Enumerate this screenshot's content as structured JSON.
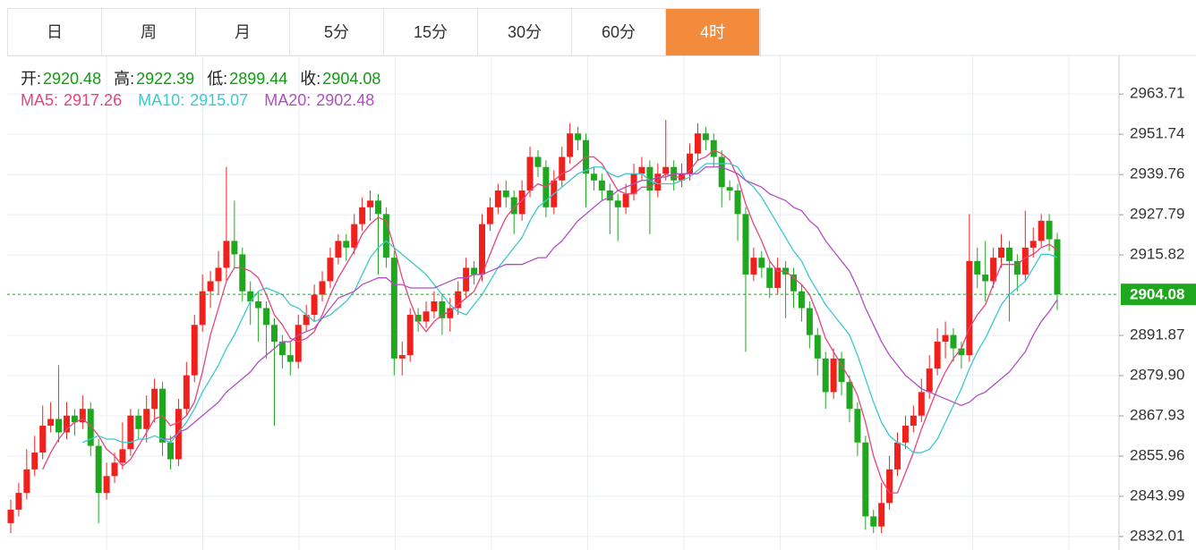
{
  "tabs": [
    "日",
    "周",
    "月",
    "5分",
    "15分",
    "30分",
    "60分",
    "4时"
  ],
  "active_tab": 7,
  "chart_data": {
    "type": "candlestick",
    "ohlc_header": [
      {
        "label": "开:",
        "value": 2920.48
      },
      {
        "label": "高:",
        "value": 2922.39
      },
      {
        "label": "低:",
        "value": 2899.44
      },
      {
        "label": "收:",
        "value": 2904.08
      }
    ],
    "up_color": "#f0201c",
    "down_color": "#1fa81f",
    "ylim": [
      2828,
      2975.2
    ],
    "yticks": [
      2832.01,
      2843.99,
      2855.96,
      2867.93,
      {
        "value": 2879.9,
        "label": "2879.90"
      },
      2891.87,
      2915.82,
      2927.79,
      2939.76,
      2951.74,
      2963.71
    ],
    "grid": true,
    "price_line": 2904.08,
    "price_color": "#1fa81f",
    "candles": [
      [
        2836,
        2843,
        2833,
        2840
      ],
      [
        2840,
        2848,
        2838,
        2845
      ],
      [
        2845,
        2858,
        2843,
        2852
      ],
      [
        2852,
        2862,
        2850,
        2857
      ],
      [
        2857,
        2871,
        2855,
        2865
      ],
      [
        2865,
        2872,
        2863,
        2867
      ],
      [
        2867,
        2883,
        2860,
        2863
      ],
      [
        2863,
        2872,
        2861,
        2868
      ],
      [
        2868,
        2870,
        2862,
        2866
      ],
      [
        2866,
        2874,
        2864,
        2870
      ],
      [
        2870,
        2872,
        2856,
        2859
      ],
      [
        2859,
        2861,
        2836,
        2845
      ],
      [
        2845,
        2854,
        2843,
        2850
      ],
      [
        2850,
        2857,
        2848,
        2854
      ],
      [
        2854,
        2866,
        2852,
        2858
      ],
      [
        2858,
        2870,
        2856,
        2868
      ],
      [
        2868,
        2870,
        2861,
        2864
      ],
      [
        2864,
        2874,
        2860,
        2870
      ],
      [
        2870,
        2879,
        2866,
        2876
      ],
      [
        2876,
        2878,
        2856,
        2860
      ],
      [
        2860,
        2862,
        2852,
        2855
      ],
      [
        2855,
        2873,
        2853,
        2870
      ],
      [
        2870,
        2884,
        2868,
        2880
      ],
      [
        2880,
        2898,
        2878,
        2895
      ],
      [
        2895,
        2910,
        2893,
        2905
      ],
      [
        2905,
        2911,
        2900,
        2908
      ],
      [
        2908,
        2917,
        2904,
        2912
      ],
      [
        2912,
        2942,
        2908,
        2920
      ],
      [
        2920,
        2932,
        2912,
        2916
      ],
      [
        2916,
        2918,
        2902,
        2905
      ],
      [
        2905,
        2908,
        2895,
        2902
      ],
      [
        2902,
        2905,
        2890,
        2900
      ],
      [
        2900,
        2902,
        2885,
        2895
      ],
      [
        2895,
        2897,
        2865,
        2890
      ],
      [
        2890,
        2892,
        2882,
        2886
      ],
      [
        2886,
        2890,
        2880,
        2884
      ],
      [
        2884,
        2898,
        2882,
        2895
      ],
      [
        2895,
        2901,
        2893,
        2898
      ],
      [
        2898,
        2907,
        2896,
        2904
      ],
      [
        2904,
        2911,
        2902,
        2908
      ],
      [
        2908,
        2918,
        2906,
        2915
      ],
      [
        2915,
        2922,
        2913,
        2920
      ],
      [
        2920,
        2922,
        2914,
        2918
      ],
      [
        2918,
        2928,
        2916,
        2925
      ],
      [
        2925,
        2933,
        2923,
        2930
      ],
      [
        2930,
        2935,
        2926,
        2932
      ],
      [
        2932,
        2934,
        2910,
        2928
      ],
      [
        2928,
        2930,
        2912,
        2915
      ],
      [
        2915,
        2917,
        2880,
        2885
      ],
      [
        2885,
        2890,
        2880,
        2886
      ],
      [
        2886,
        2900,
        2884,
        2898
      ],
      [
        2898,
        2900,
        2893,
        2896
      ],
      [
        2896,
        2902,
        2894,
        2899
      ],
      [
        2899,
        2905,
        2897,
        2902
      ],
      [
        2902,
        2904,
        2892,
        2897
      ],
      [
        2897,
        2903,
        2893,
        2900
      ],
      [
        2900,
        2908,
        2898,
        2905
      ],
      [
        2905,
        2915,
        2903,
        2912
      ],
      [
        2912,
        2914,
        2907,
        2910
      ],
      [
        2910,
        2928,
        2908,
        2925
      ],
      [
        2925,
        2933,
        2923,
        2930
      ],
      [
        2930,
        2937,
        2928,
        2935
      ],
      [
        2935,
        2938,
        2930,
        2933
      ],
      [
        2933,
        2935,
        2922,
        2928
      ],
      [
        2928,
        2938,
        2926,
        2935
      ],
      [
        2935,
        2948,
        2933,
        2945
      ],
      [
        2945,
        2947,
        2939,
        2942
      ],
      [
        2942,
        2944,
        2927,
        2930
      ],
      [
        2930,
        2941,
        2928,
        2938
      ],
      [
        2938,
        2948,
        2936,
        2945
      ],
      [
        2945,
        2955,
        2943,
        2952
      ],
      [
        2952,
        2954,
        2947,
        2950
      ],
      [
        2950,
        2952,
        2930,
        2940
      ],
      [
        2940,
        2942,
        2935,
        2938
      ],
      [
        2938,
        2940,
        2932,
        2935
      ],
      [
        2935,
        2937,
        2922,
        2932
      ],
      [
        2932,
        2934,
        2920,
        2930
      ],
      [
        2930,
        2937,
        2928,
        2934
      ],
      [
        2934,
        2943,
        2932,
        2940
      ],
      [
        2940,
        2945,
        2938,
        2942
      ],
      [
        2942,
        2944,
        2922,
        2935
      ],
      [
        2935,
        2943,
        2933,
        2940
      ],
      [
        2940,
        2956,
        2938,
        2942
      ],
      [
        2942,
        2944,
        2935,
        2938
      ],
      [
        2938,
        2943,
        2936,
        2940
      ],
      [
        2940,
        2949,
        2938,
        2946
      ],
      [
        2946,
        2955,
        2944,
        2952
      ],
      [
        2952,
        2954,
        2947,
        2950
      ],
      [
        2950,
        2952,
        2942,
        2945
      ],
      [
        2945,
        2947,
        2930,
        2936
      ],
      [
        2936,
        2938,
        2932,
        2935
      ],
      [
        2935,
        2937,
        2920,
        2928
      ],
      [
        2928,
        2930,
        2887,
        2910
      ],
      [
        2910,
        2918,
        2908,
        2915
      ],
      [
        2915,
        2917,
        2909,
        2912
      ],
      [
        2912,
        2914,
        2903,
        2906
      ],
      [
        2906,
        2915,
        2904,
        2912
      ],
      [
        2912,
        2914,
        2897,
        2910
      ],
      [
        2910,
        2912,
        2900,
        2905
      ],
      [
        2905,
        2907,
        2896,
        2900
      ],
      [
        2900,
        2902,
        2888,
        2892
      ],
      [
        2892,
        2894,
        2880,
        2885
      ],
      [
        2885,
        2887,
        2870,
        2875
      ],
      [
        2875,
        2888,
        2873,
        2885
      ],
      [
        2885,
        2887,
        2874,
        2878
      ],
      [
        2878,
        2880,
        2866,
        2870
      ],
      [
        2870,
        2872,
        2856,
        2860
      ],
      [
        2860,
        2862,
        2834,
        2838
      ],
      [
        2838,
        2840,
        2833,
        2835
      ],
      [
        2835,
        2848,
        2833,
        2842
      ],
      [
        2842,
        2856,
        2840,
        2852
      ],
      [
        2852,
        2863,
        2850,
        2860
      ],
      [
        2860,
        2868,
        2858,
        2865
      ],
      [
        2865,
        2871,
        2863,
        2868
      ],
      [
        2868,
        2879,
        2866,
        2875
      ],
      [
        2875,
        2886,
        2873,
        2882
      ],
      [
        2882,
        2894,
        2880,
        2890
      ],
      [
        2890,
        2896,
        2885,
        2892
      ],
      [
        2892,
        2894,
        2884,
        2888
      ],
      [
        2888,
        2890,
        2882,
        2886
      ],
      [
        2886,
        2928,
        2884,
        2914
      ],
      [
        2914,
        2918,
        2906,
        2910
      ],
      [
        2910,
        2920,
        2902,
        2908
      ],
      [
        2908,
        2918,
        2906,
        2915
      ],
      [
        2915,
        2922,
        2912,
        2918
      ],
      [
        2918,
        2920,
        2896,
        2914
      ],
      [
        2914,
        2916,
        2905,
        2910
      ],
      [
        2910,
        2929,
        2908,
        2918
      ],
      [
        2918,
        2924,
        2915,
        2920
      ],
      [
        2920,
        2928,
        2918,
        2926
      ],
      [
        2926,
        2928,
        2917,
        2920.48
      ],
      [
        2920.48,
        2922.39,
        2899.44,
        2904.08
      ]
    ],
    "series": [
      {
        "name": "MA5",
        "label": "MA5:",
        "last": 2917.26,
        "color": "#e6457a",
        "values": [
          null,
          null,
          null,
          null,
          2852,
          2857,
          2861,
          2864,
          2866,
          2867,
          2865,
          2862,
          2858,
          2856,
          2853,
          2855,
          2859,
          2863,
          2867,
          2868,
          2865,
          2866,
          2868,
          2872,
          2881,
          2892,
          2900,
          2908,
          2912,
          2912,
          2911,
          2909,
          2904,
          2898,
          2895,
          2891,
          2890,
          2891,
          2893,
          2898,
          2904,
          2909,
          2913,
          2917,
          2922,
          2925,
          2927,
          2926,
          2918,
          2909,
          2902,
          2896,
          2893,
          2896,
          2898,
          2899,
          2901,
          2903,
          2905,
          2910,
          2916,
          2922,
          2927,
          2930,
          2932,
          2935,
          2937,
          2936,
          2938,
          2940,
          2941,
          2943,
          2945,
          2945,
          2943,
          2939,
          2935,
          2934,
          2934,
          2936,
          2936,
          2938,
          2940,
          2939,
          2939,
          2941,
          2944,
          2945,
          2947,
          2946,
          2944,
          2939,
          2931,
          2925,
          2920,
          2914,
          2911,
          2911,
          2909,
          2907,
          2904,
          2898,
          2891,
          2887,
          2883,
          2879,
          2874,
          2866,
          2856,
          2849,
          2845,
          2845,
          2851,
          2857,
          2864,
          2870,
          2876,
          2881,
          2885,
          2888,
          2894,
          2898,
          2901,
          2907,
          2913,
          2913,
          2913,
          2915,
          2916,
          2918,
          2919,
          2917.26
        ]
      },
      {
        "name": "MA10",
        "label": "MA10:",
        "last": 2915.07,
        "color": "#3cc8d0",
        "values": [
          null,
          null,
          null,
          null,
          null,
          null,
          null,
          null,
          null,
          2860,
          2861,
          2862,
          2861,
          2861,
          2860,
          2860,
          2861,
          2861,
          2862,
          2861,
          2860,
          2863,
          2866,
          2870,
          2875,
          2879,
          2883,
          2888,
          2892,
          2897,
          2902,
          2905,
          2906,
          2905,
          2904,
          2901,
          2900,
          2898,
          2896,
          2897,
          2898,
          2900,
          2902,
          2905,
          2910,
          2915,
          2918,
          2920,
          2918,
          2916,
          2914,
          2912,
          2910,
          2907,
          2904,
          2901,
          2899,
          2898,
          2901,
          2904,
          2908,
          2912,
          2915,
          2918,
          2921,
          2926,
          2930,
          2932,
          2934,
          2936,
          2938,
          2940,
          2941,
          2942,
          2942,
          2940,
          2939,
          2940,
          2940,
          2940,
          2938,
          2937,
          2937,
          2937,
          2938,
          2939,
          2941,
          2943,
          2943,
          2943,
          2943,
          2942,
          2938,
          2936,
          2933,
          2929,
          2925,
          2921,
          2917,
          2914,
          2909,
          2905,
          2901,
          2898,
          2895,
          2892,
          2886,
          2879,
          2872,
          2866,
          2862,
          2860,
          2859,
          2857,
          2857,
          2858,
          2861,
          2866,
          2871,
          2876,
          2882,
          2887,
          2891,
          2896,
          2901,
          2904,
          2906,
          2908,
          2912,
          2916,
          2916,
          2915.07
        ]
      },
      {
        "name": "MA20",
        "label": "MA20:",
        "last": 2902.48,
        "color": "#b04fc0",
        "values": [
          null,
          null,
          null,
          null,
          null,
          null,
          null,
          null,
          null,
          null,
          null,
          null,
          null,
          null,
          null,
          null,
          null,
          null,
          null,
          2861,
          2861,
          2863,
          2864,
          2866,
          2868,
          2870,
          2872,
          2875,
          2877,
          2879,
          2881,
          2884,
          2886,
          2888,
          2890,
          2890,
          2892,
          2893,
          2894,
          2897,
          2900,
          2903,
          2904,
          2905,
          2907,
          2908,
          2909,
          2909,
          2907,
          2907,
          2906,
          2906,
          2906,
          2906,
          2907,
          2908,
          2909,
          2909,
          2910,
          2910,
          2911,
          2912,
          2913,
          2913,
          2913,
          2914,
          2915,
          2915,
          2918,
          2920,
          2923,
          2926,
          2928,
          2930,
          2932,
          2933,
          2935,
          2936,
          2937,
          2938,
          2938,
          2939,
          2939,
          2940,
          2940,
          2940,
          2940,
          2942,
          2942,
          2942,
          2941,
          2940,
          2938,
          2937,
          2936,
          2934,
          2933,
          2932,
          2930,
          2929,
          2926,
          2924,
          2920,
          2917,
          2914,
          2911,
          2906,
          2900,
          2895,
          2890,
          2886,
          2883,
          2880,
          2878,
          2876,
          2875,
          2874,
          2873,
          2872,
          2871,
          2872,
          2874,
          2875,
          2877,
          2879,
          2881,
          2884,
          2887,
          2892,
          2896,
          2899,
          2902.48
        ]
      }
    ]
  }
}
